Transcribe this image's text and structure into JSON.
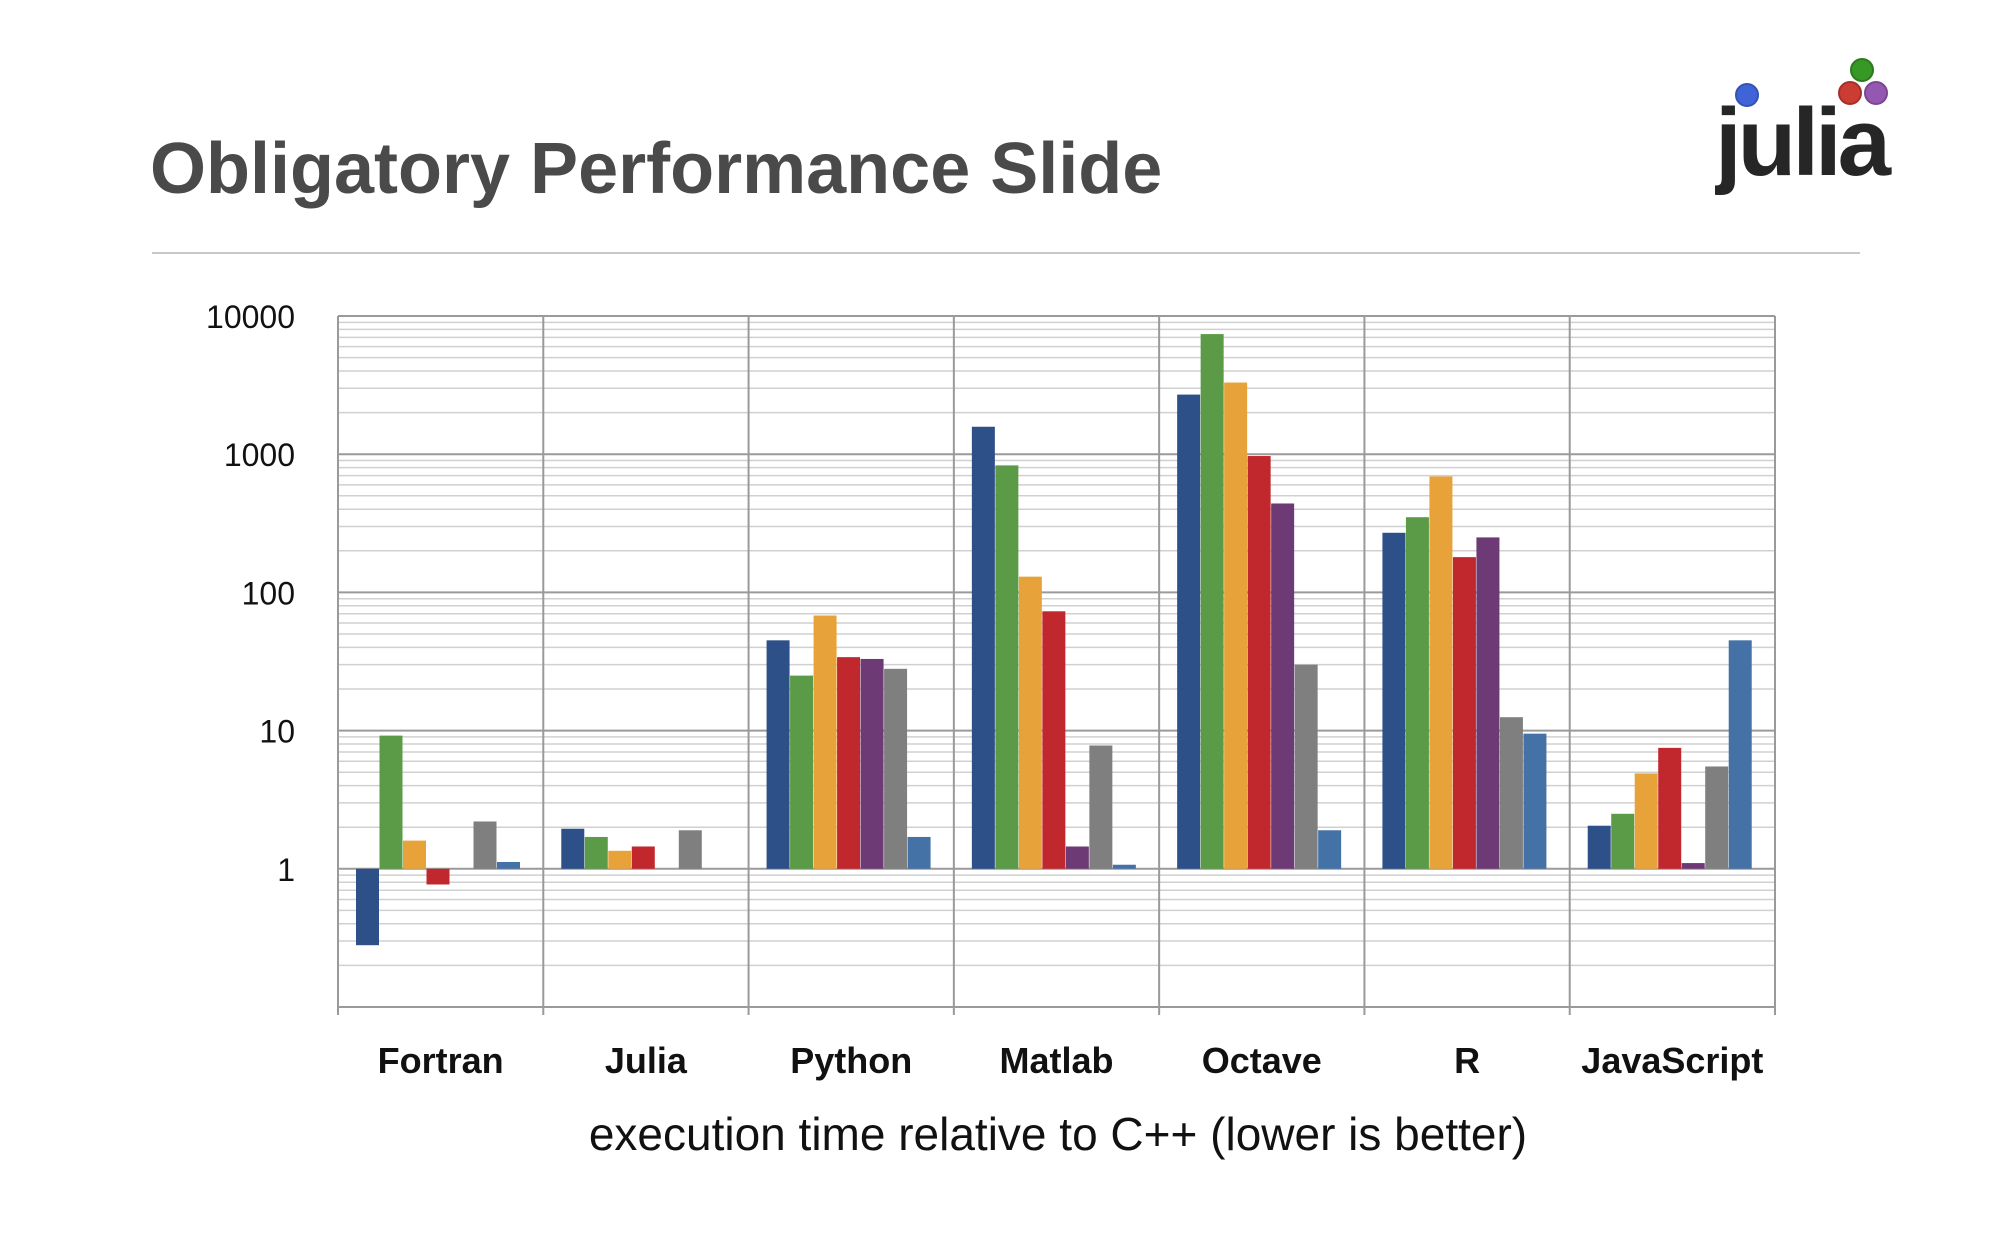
{
  "slide": {
    "title": "Obligatory Performance Slide",
    "logo_text": "julia"
  },
  "colors": {
    "series": [
      "#2e5088",
      "#5b9a47",
      "#e8a23a",
      "#c1282d",
      "#6d3a76",
      "#7f7f7f",
      "#4472a6"
    ],
    "grid_major": "#9a9a9a",
    "grid_minor": "#d0d0d0",
    "logo_dots": [
      "#4063d8",
      "#389826",
      "#cb3c33",
      "#9558b2"
    ]
  },
  "chart_data": {
    "type": "bar",
    "log_scale": true,
    "ylim": [
      0.1,
      10000
    ],
    "ytick_labels": [
      "10000",
      "1000",
      "100",
      "10",
      "1"
    ],
    "ytick_values": [
      10000,
      1000,
      100,
      10,
      1
    ],
    "categories": [
      "Fortran",
      "Julia",
      "Python",
      "Matlab",
      "Octave",
      "R",
      "JavaScript"
    ],
    "xlabel": "execution time relative to C++ (lower is better)",
    "grid": true,
    "series": [
      {
        "values": [
          0.28,
          1.95,
          45,
          1580,
          2700,
          270,
          2.05
        ]
      },
      {
        "values": [
          9.2,
          1.7,
          25,
          830,
          7400,
          350,
          2.5
        ]
      },
      {
        "values": [
          1.6,
          1.35,
          68,
          130,
          3300,
          690,
          4.9
        ]
      },
      {
        "values": [
          0.77,
          1.45,
          34,
          73,
          970,
          180,
          7.5
        ]
      },
      {
        "values": [
          null,
          null,
          33,
          1.45,
          440,
          250,
          1.1
        ]
      },
      {
        "values": [
          2.2,
          1.9,
          28,
          7.8,
          30,
          12.5,
          5.5
        ]
      },
      {
        "values": [
          1.12,
          null,
          1.7,
          1.07,
          1.9,
          9.5,
          45
        ]
      }
    ]
  }
}
